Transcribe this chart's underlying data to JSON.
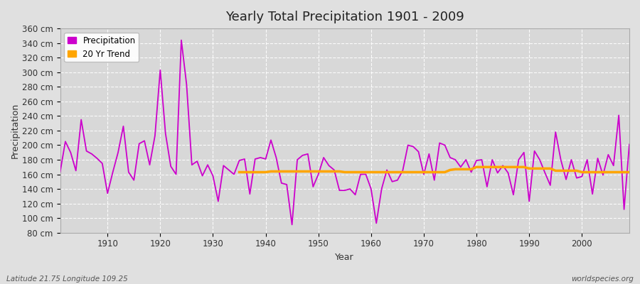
{
  "title": "Yearly Total Precipitation 1901 - 2009",
  "xlabel": "Year",
  "ylabel": "Precipitation",
  "subtitle": "Latitude 21.75 Longitude 109.25",
  "watermark": "worldspecies.org",
  "legend_labels": [
    "Precipitation",
    "20 Yr Trend"
  ],
  "precip_color": "#CC00CC",
  "trend_color": "#FFA500",
  "bg_color": "#E0E0E0",
  "plot_bg_color": "#D8D8D8",
  "ylim": [
    80,
    360
  ],
  "ytick_step": 20,
  "xlim": [
    1901,
    2009
  ],
  "years": [
    1901,
    1902,
    1903,
    1904,
    1905,
    1906,
    1907,
    1908,
    1909,
    1910,
    1911,
    1912,
    1913,
    1914,
    1915,
    1916,
    1917,
    1918,
    1919,
    1920,
    1921,
    1922,
    1923,
    1924,
    1925,
    1926,
    1927,
    1928,
    1929,
    1930,
    1931,
    1932,
    1933,
    1934,
    1935,
    1936,
    1937,
    1938,
    1939,
    1940,
    1941,
    1942,
    1943,
    1944,
    1945,
    1946,
    1947,
    1948,
    1949,
    1950,
    1951,
    1952,
    1953,
    1954,
    1955,
    1956,
    1957,
    1958,
    1959,
    1960,
    1961,
    1962,
    1963,
    1964,
    1965,
    1966,
    1967,
    1968,
    1969,
    1970,
    1971,
    1972,
    1973,
    1974,
    1975,
    1976,
    1977,
    1978,
    1979,
    1980,
    1981,
    1982,
    1983,
    1984,
    1985,
    1986,
    1987,
    1988,
    1989,
    1990,
    1991,
    1992,
    1993,
    1994,
    1995,
    1996,
    1997,
    1998,
    1999,
    2000,
    2001,
    2002,
    2003,
    2004,
    2005,
    2006,
    2007,
    2008,
    2009
  ],
  "precip": [
    163,
    205,
    190,
    165,
    235,
    192,
    188,
    182,
    175,
    134,
    163,
    190,
    226,
    163,
    152,
    202,
    206,
    173,
    213,
    303,
    216,
    171,
    160,
    344,
    283,
    173,
    178,
    158,
    173,
    158,
    123,
    172,
    166,
    160,
    179,
    181,
    133,
    181,
    183,
    181,
    207,
    183,
    148,
    146,
    91,
    180,
    186,
    188,
    143,
    160,
    183,
    172,
    166,
    138,
    138,
    140,
    132,
    160,
    160,
    140,
    93,
    140,
    166,
    150,
    152,
    165,
    200,
    198,
    191,
    160,
    188,
    152,
    203,
    200,
    183,
    180,
    170,
    180,
    163,
    179,
    180,
    143,
    180,
    162,
    172,
    162,
    132,
    180,
    190,
    123,
    192,
    180,
    162,
    145,
    218,
    180,
    153,
    180,
    155,
    157,
    180,
    133,
    182,
    159,
    187,
    172,
    241,
    112,
    201
  ],
  "trend_years": [
    1935,
    1936,
    1937,
    1938,
    1939,
    1940,
    1941,
    1942,
    1943,
    1944,
    1945,
    1946,
    1947,
    1948,
    1949,
    1950,
    1951,
    1952,
    1953,
    1954,
    1955,
    1956,
    1957,
    1958,
    1959,
    1960,
    1961,
    1962,
    1963,
    1964,
    1965,
    1966,
    1967,
    1968,
    1969,
    1970,
    1971,
    1972,
    1973,
    1974,
    1975,
    1976,
    1977,
    1978,
    1979,
    1980,
    1981,
    1982,
    1983,
    1984,
    1985,
    1986,
    1987,
    1988,
    1989,
    1990,
    1991,
    1992,
    1993,
    1994,
    1995,
    1996,
    1997,
    1998,
    1999,
    2000,
    2001,
    2002,
    2003,
    2004,
    2005,
    2006,
    2007,
    2008,
    2009
  ],
  "trend": [
    163,
    163,
    163,
    163,
    163,
    163,
    164,
    164,
    164,
    164,
    164,
    164,
    164,
    164,
    164,
    164,
    164,
    164,
    164,
    164,
    163,
    163,
    163,
    163,
    163,
    163,
    163,
    163,
    163,
    163,
    163,
    163,
    163,
    163,
    163,
    163,
    163,
    163,
    163,
    163,
    166,
    167,
    167,
    167,
    167,
    170,
    170,
    170,
    170,
    170,
    170,
    170,
    170,
    170,
    170,
    168,
    168,
    168,
    168,
    168,
    165,
    165,
    165,
    165,
    165,
    163,
    163,
    163,
    163,
    163,
    163,
    163,
    163,
    163,
    163
  ]
}
